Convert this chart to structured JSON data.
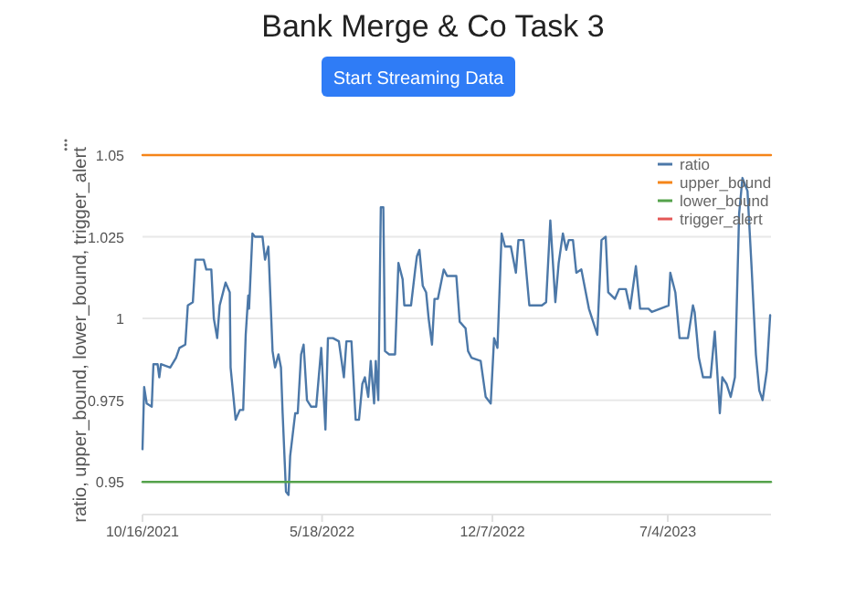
{
  "chart_data": {
    "type": "line",
    "title": "Bank Merge & Co Task 3",
    "annotations": [
      "Start Streaming Data"
    ],
    "ylabel": "ratio, upper_bound, lower_bound, trigger_alert",
    "xlim": [
      "2021-10-16",
      "2023-11-04"
    ],
    "xticks": [
      {
        "value": "2021-10-16",
        "label": "10/16/2021"
      },
      {
        "value": "2022-05-18",
        "label": "5/18/2022"
      },
      {
        "value": "2022-12-07",
        "label": "12/7/2022"
      },
      {
        "value": "2023-07-04",
        "label": "7/4/2023"
      }
    ],
    "ylim": [
      0.94,
      1.05
    ],
    "yticks": [
      0.95,
      0.975,
      1,
      1.025,
      1.05
    ],
    "grid": "y",
    "legend": "top right",
    "line_style": "solid",
    "marker": "none",
    "series": [
      {
        "name": "ratio",
        "color": "#4c78a8",
        "x": [
          "2021-10-16",
          "2021-10-18",
          "2021-10-21",
          "2021-10-27",
          "2021-10-29",
          "2021-11-03",
          "2021-11-05",
          "2021-11-07",
          "2021-11-18",
          "2021-11-25",
          "2021-11-29",
          "2021-12-06",
          "2021-12-09",
          "2021-12-15",
          "2021-12-18",
          "2021-12-28",
          "2021-12-31",
          "2022-01-06",
          "2022-01-09",
          "2022-01-13",
          "2022-01-16",
          "2022-01-21",
          "2022-01-23",
          "2022-01-28",
          "2022-01-29",
          "2022-02-04",
          "2022-02-09",
          "2022-02-13",
          "2022-02-16",
          "2022-02-19",
          "2022-02-20",
          "2022-02-24",
          "2022-02-27",
          "2022-03-08",
          "2022-03-11",
          "2022-03-15",
          "2022-03-20",
          "2022-03-23",
          "2022-03-27",
          "2022-03-30",
          "2022-04-01",
          "2022-04-05",
          "2022-04-08",
          "2022-04-10",
          "2022-04-16",
          "2022-04-19",
          "2022-04-23",
          "2022-04-26",
          "2022-04-30",
          "2022-05-05",
          "2022-05-11",
          "2022-05-17",
          "2022-05-22",
          "2022-05-25",
          "2022-05-31",
          "2022-06-07",
          "2022-06-13",
          "2022-06-16",
          "2022-06-22",
          "2022-06-27",
          "2022-07-01",
          "2022-07-05",
          "2022-07-08",
          "2022-07-12",
          "2022-07-15",
          "2022-07-19",
          "2022-07-21",
          "2022-07-24",
          "2022-07-27",
          "2022-07-30",
          "2022-08-01",
          "2022-08-06",
          "2022-08-13",
          "2022-08-17",
          "2022-08-22",
          "2022-08-24",
          "2022-09-01",
          "2022-09-06",
          "2022-09-08",
          "2022-09-11",
          "2022-09-15",
          "2022-09-19",
          "2022-09-22",
          "2022-09-26",
          "2022-09-29",
          "2022-10-03",
          "2022-10-10",
          "2022-10-14",
          "2022-10-25",
          "2022-10-29",
          "2022-11-05",
          "2022-11-08",
          "2022-11-12",
          "2022-11-23",
          "2022-11-29",
          "2022-12-05",
          "2022-12-09",
          "2022-12-13",
          "2022-12-18",
          "2022-12-22",
          "2022-12-29",
          "2023-01-04",
          "2023-01-07",
          "2023-01-13",
          "2023-01-20",
          "2023-02-04",
          "2023-02-09",
          "2023-02-14",
          "2023-02-20",
          "2023-02-24",
          "2023-03-01",
          "2023-03-05",
          "2023-03-08",
          "2023-03-13",
          "2023-03-17",
          "2023-03-23",
          "2023-03-26",
          "2023-04-01",
          "2023-04-06",
          "2023-04-11",
          "2023-04-16",
          "2023-04-21",
          "2023-04-24",
          "2023-05-02",
          "2023-05-07",
          "2023-05-15",
          "2023-05-20",
          "2023-05-27",
          "2023-06-01",
          "2023-06-11",
          "2023-06-15",
          "2023-06-25",
          "2023-07-05",
          "2023-07-07",
          "2023-07-13",
          "2023-07-18",
          "2023-07-28",
          "2023-08-03",
          "2023-08-05",
          "2023-08-10",
          "2023-08-15",
          "2023-08-24",
          "2023-08-29",
          "2023-09-04",
          "2023-09-07",
          "2023-09-12",
          "2023-09-17",
          "2023-09-22",
          "2023-09-27",
          "2023-10-01",
          "2023-10-07",
          "2023-10-12",
          "2023-10-17",
          "2023-10-21",
          "2023-10-25",
          "2023-10-30",
          "2023-11-03"
        ],
        "values": [
          0.96,
          0.979,
          0.974,
          0.973,
          0.986,
          0.986,
          0.982,
          0.986,
          0.985,
          0.988,
          0.991,
          0.992,
          1.004,
          1.005,
          1.018,
          1.018,
          1.015,
          1.015,
          1.0,
          0.994,
          1.004,
          1.009,
          1.011,
          1.008,
          0.985,
          0.969,
          0.972,
          0.972,
          0.995,
          1.007,
          1.003,
          1.026,
          1.025,
          1.025,
          1.018,
          1.022,
          0.99,
          0.985,
          0.989,
          0.985,
          0.971,
          0.947,
          0.946,
          0.958,
          0.971,
          0.971,
          0.989,
          0.992,
          0.975,
          0.973,
          0.973,
          0.991,
          0.966,
          0.994,
          0.994,
          0.993,
          0.982,
          0.993,
          0.993,
          0.969,
          0.969,
          0.98,
          0.982,
          0.976,
          0.987,
          0.974,
          0.987,
          0.975,
          1.034,
          1.034,
          0.99,
          0.989,
          0.989,
          1.017,
          1.012,
          1.004,
          1.004,
          1.015,
          1.019,
          1.021,
          1.01,
          1.008,
          1.0,
          0.992,
          1.006,
          1.006,
          1.015,
          1.013,
          1.013,
          0.999,
          0.997,
          0.99,
          0.988,
          0.987,
          0.976,
          0.974,
          0.994,
          0.991,
          1.026,
          1.022,
          1.022,
          1.014,
          1.024,
          1.024,
          1.004,
          1.004,
          1.005,
          1.03,
          1.005,
          1.017,
          1.026,
          1.021,
          1.024,
          1.024,
          1.014,
          1.015,
          1.011,
          1.003,
          0.999,
          0.995,
          1.024,
          1.025,
          1.008,
          1.006,
          1.009,
          1.009,
          1.003,
          1.016,
          1.003,
          1.003,
          1.002,
          1.003,
          1.004,
          1.014,
          1.008,
          0.994,
          0.994,
          1.004,
          1.002,
          0.988,
          0.982,
          0.982,
          0.996,
          0.971,
          0.982,
          0.98,
          0.976,
          0.982,
          1.032,
          1.043,
          1.039,
          1.015,
          0.989,
          0.978,
          0.975,
          0.984,
          1.001
        ]
      },
      {
        "name": "upper_bound",
        "color": "#f58518",
        "x": [
          "2021-10-16",
          "2023-11-04"
        ],
        "values": [
          1.05,
          1.05
        ]
      },
      {
        "name": "lower_bound",
        "color": "#54a24b",
        "x": [
          "2021-10-16",
          "2023-11-04"
        ],
        "values": [
          0.95,
          0.95
        ]
      },
      {
        "name": "trigger_alert",
        "color": "#e45756"
      }
    ]
  }
}
